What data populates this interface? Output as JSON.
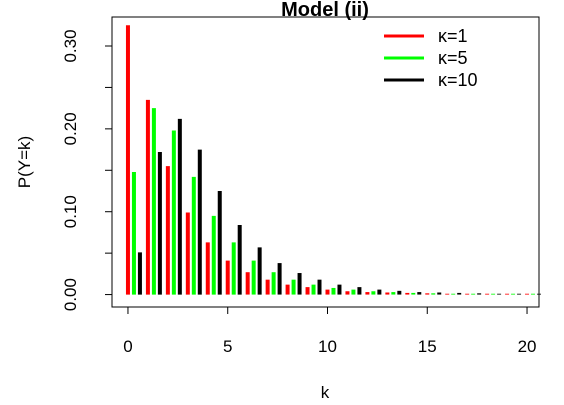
{
  "chart_data": {
    "type": "bar",
    "title": "Model (ii)",
    "xlabel": "k",
    "ylabel": "P(Y=k)",
    "xlim": [
      -0.8,
      20.6
    ],
    "ylim": [
      -0.015,
      0.335
    ],
    "xticks": [
      0,
      5,
      10,
      15,
      20
    ],
    "xtick_labels": [
      "0",
      "5",
      "10",
      "15",
      "20"
    ],
    "yticks": [
      0.0,
      0.1,
      0.2,
      0.3
    ],
    "ytick_labels": [
      "0.00",
      "0.10",
      "0.20",
      "0.30"
    ],
    "grid": false,
    "legend_position": "top-right",
    "x": [
      0,
      1,
      2,
      3,
      4,
      5,
      6,
      7,
      8,
      9,
      10,
      11,
      12,
      13,
      14,
      15,
      16,
      17,
      18,
      19,
      20
    ],
    "series": [
      {
        "name": "κ=1",
        "color": "#ff0000",
        "offset": 0.0,
        "values": [
          0.325,
          0.235,
          0.155,
          0.099,
          0.063,
          0.041,
          0.027,
          0.018,
          0.012,
          0.009,
          0.006,
          0.004,
          0.003,
          0.0025,
          0.002,
          0.0015,
          0.001,
          0.001,
          0.001,
          0.001,
          0.001
        ]
      },
      {
        "name": "κ=5",
        "color": "#00ff00",
        "offset": 0.3,
        "values": [
          0.148,
          0.225,
          0.198,
          0.142,
          0.095,
          0.063,
          0.041,
          0.027,
          0.018,
          0.012,
          0.008,
          0.006,
          0.004,
          0.003,
          0.002,
          0.0015,
          0.001,
          0.001,
          0.001,
          0.001,
          0.001
        ]
      },
      {
        "name": "κ=10",
        "color": "#000000",
        "offset": 0.6,
        "values": [
          0.051,
          0.172,
          0.212,
          0.175,
          0.125,
          0.084,
          0.057,
          0.038,
          0.026,
          0.018,
          0.012,
          0.009,
          0.006,
          0.0045,
          0.003,
          0.0025,
          0.002,
          0.0015,
          0.001,
          0.001,
          0.001
        ]
      }
    ]
  }
}
